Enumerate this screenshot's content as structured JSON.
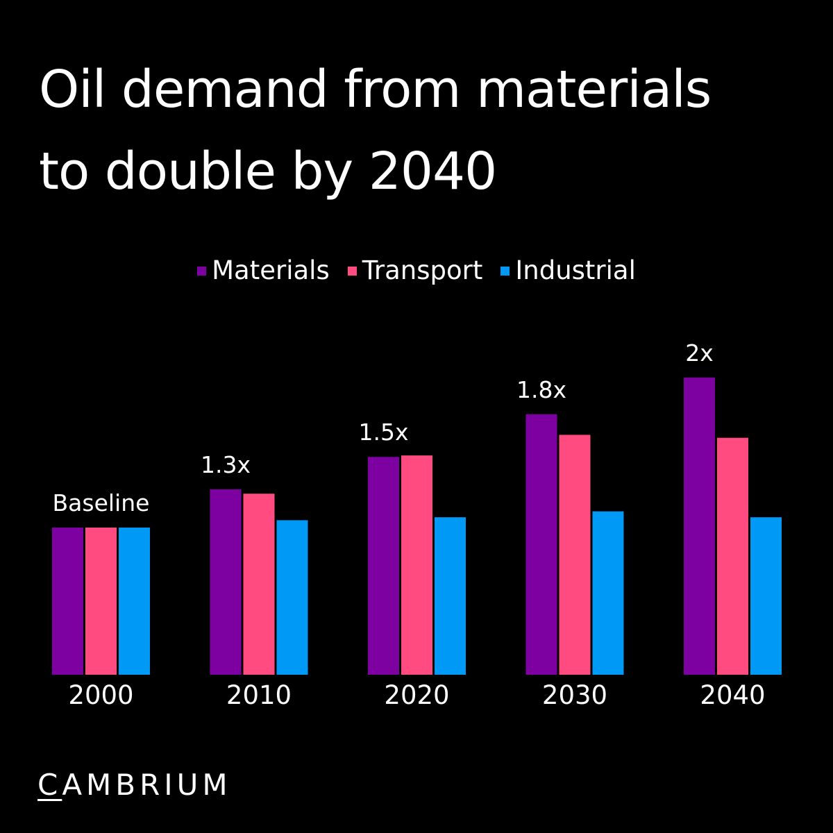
{
  "title_line1": "Oil demand from materials",
  "title_line2": "to double by 2040",
  "brand": {
    "first_letter": "C",
    "rest": "AMBRIUM"
  },
  "colors": {
    "materials": "#7d00a0",
    "transport": "#ff4b80",
    "industrial": "#0099f5",
    "background": "#000000",
    "text": "#ffffff"
  },
  "chart_data": {
    "type": "bar",
    "title": "Oil demand from materials to double by 2040",
    "xlabel": "",
    "ylabel": "",
    "categories": [
      "2000",
      "2010",
      "2020",
      "2030",
      "2040"
    ],
    "series": [
      {
        "name": "Materials",
        "values": [
          1.0,
          1.26,
          1.48,
          1.77,
          2.02
        ]
      },
      {
        "name": "Transport",
        "values": [
          1.0,
          1.23,
          1.49,
          1.63,
          1.61
        ]
      },
      {
        "name": "Industrial",
        "values": [
          1.0,
          1.05,
          1.07,
          1.11,
          1.07
        ]
      }
    ],
    "annotations": [
      "Baseline",
      "1.3x",
      "1.5x",
      "1.8x",
      "2x"
    ],
    "ylim": [
      0,
      2.1
    ],
    "grid": false,
    "legend_position": "top-center"
  }
}
